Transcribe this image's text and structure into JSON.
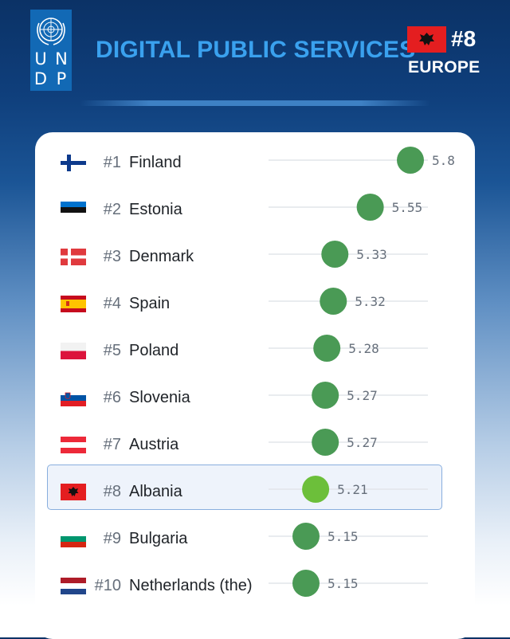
{
  "header": {
    "logo_letters": [
      "U",
      "N",
      "D",
      "P"
    ],
    "title": "DIGITAL PUBLIC SERVICES",
    "rank": "#8",
    "region": "EUROPE"
  },
  "colors": {
    "title": "#3aa1ee",
    "dot": "#4a9a55",
    "dot_highlight": "#6cbf3a",
    "track": "#e2e5ea"
  },
  "chart_data": {
    "type": "scatter",
    "orientation": "horizontal",
    "categories": [
      "Finland",
      "Estonia",
      "Denmark",
      "Spain",
      "Poland",
      "Slovenia",
      "Austria",
      "Albania",
      "Bulgaria",
      "Netherlands (the)"
    ],
    "ranks": [
      "#1",
      "#2",
      "#3",
      "#4",
      "#5",
      "#6",
      "#7",
      "#8",
      "#9",
      "#10"
    ],
    "values": [
      5.8,
      5.55,
      5.33,
      5.32,
      5.28,
      5.27,
      5.27,
      5.21,
      5.15,
      5.15
    ],
    "value_labels": [
      "5.8",
      "5.55",
      "5.33",
      "5.32",
      "5.28",
      "5.27",
      "5.27",
      "5.21",
      "5.15",
      "5.15"
    ],
    "highlight": "Albania",
    "flag_icons": [
      "flag-finland-icon",
      "flag-estonia-icon",
      "flag-denmark-icon",
      "flag-spain-icon",
      "flag-poland-icon",
      "flag-slovenia-icon",
      "flag-austria-icon",
      "flag-albania-icon",
      "flag-bulgaria-icon",
      "flag-netherlands-icon"
    ],
    "title": "",
    "xlabel": "",
    "ylabel": "",
    "grid": false
  }
}
